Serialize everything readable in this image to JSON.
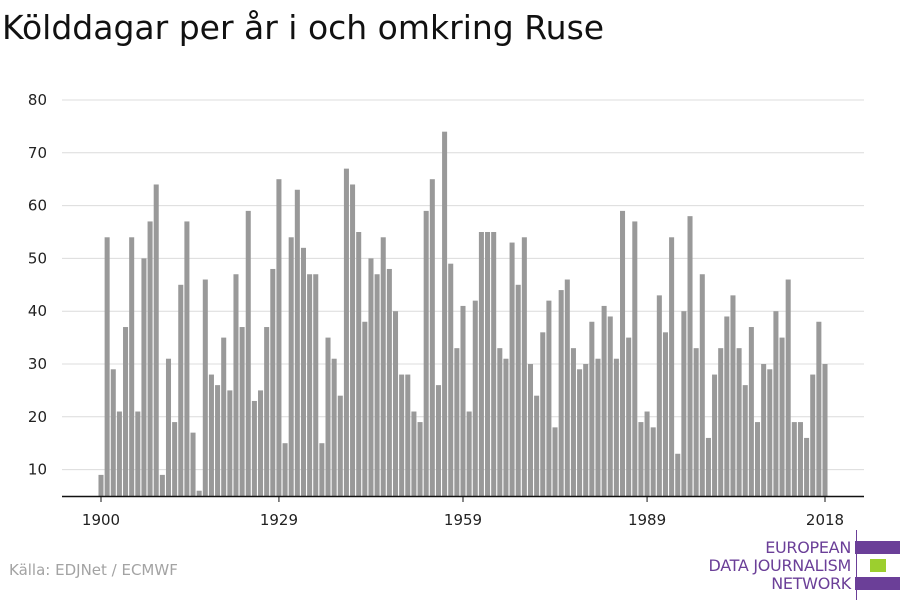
{
  "title": "Kölddagar per år i och omkring Ruse",
  "source": "Källa: EDJNet / ECMWF",
  "logo": {
    "lines": [
      "EUROPEAN",
      "DATA JOURNALISM",
      "NETWORK"
    ],
    "colors": {
      "purple": "#6b3f98",
      "green": "#9ccf2e"
    }
  },
  "colors": {
    "bar": "#999999",
    "grid": "#dcdcdc",
    "axis": "#111111",
    "tick_label": "#222222"
  },
  "chart_data": {
    "type": "bar",
    "title": "Kölddagar per år i och omkring Ruse",
    "xlabel": "",
    "ylabel": "",
    "x_start": 1900,
    "x_end": 2018,
    "x": [
      1900,
      1901,
      1902,
      1903,
      1904,
      1905,
      1906,
      1907,
      1908,
      1909,
      1910,
      1911,
      1912,
      1913,
      1914,
      1915,
      1916,
      1917,
      1918,
      1919,
      1920,
      1921,
      1922,
      1923,
      1924,
      1925,
      1926,
      1927,
      1928,
      1929,
      1930,
      1931,
      1932,
      1933,
      1934,
      1935,
      1936,
      1937,
      1938,
      1939,
      1940,
      1941,
      1942,
      1943,
      1944,
      1945,
      1946,
      1947,
      1948,
      1949,
      1950,
      1951,
      1952,
      1953,
      1954,
      1955,
      1956,
      1957,
      1958,
      1959,
      1960,
      1961,
      1962,
      1963,
      1964,
      1965,
      1966,
      1967,
      1968,
      1969,
      1970,
      1971,
      1972,
      1973,
      1974,
      1975,
      1976,
      1977,
      1978,
      1979,
      1980,
      1981,
      1982,
      1983,
      1984,
      1985,
      1986,
      1987,
      1988,
      1989,
      1990,
      1991,
      1992,
      1993,
      1994,
      1995,
      1996,
      1997,
      1998,
      1999,
      2000,
      2001,
      2002,
      2003,
      2004,
      2005,
      2006,
      2007,
      2008,
      2009,
      2010,
      2011,
      2012,
      2013,
      2014,
      2015,
      2016,
      2017,
      2018
    ],
    "values": [
      9,
      54,
      29,
      21,
      37,
      54,
      21,
      50,
      57,
      64,
      9,
      31,
      19,
      45,
      57,
      17,
      6,
      46,
      28,
      26,
      35,
      25,
      47,
      37,
      59,
      23,
      25,
      37,
      48,
      65,
      15,
      54,
      63,
      52,
      47,
      47,
      15,
      35,
      31,
      24,
      67,
      64,
      55,
      38,
      50,
      47,
      54,
      48,
      40,
      28,
      28,
      21,
      19,
      59,
      65,
      26,
      74,
      49,
      33,
      41,
      21,
      42,
      55,
      55,
      55,
      33,
      31,
      53,
      45,
      54,
      30,
      24,
      36,
      42,
      18,
      44,
      46,
      33,
      29,
      30,
      38,
      31,
      41,
      39,
      31,
      59,
      35,
      57,
      19,
      21,
      18,
      43,
      36,
      54,
      13,
      40,
      58,
      33,
      47,
      16,
      28,
      33,
      39,
      43,
      33,
      26,
      37,
      19,
      30,
      29,
      40,
      35,
      46,
      19,
      19,
      16,
      28,
      38,
      30
    ],
    "ylim": [
      5,
      80
    ],
    "y_ticks": [
      10,
      20,
      30,
      40,
      50,
      60,
      70,
      80
    ],
    "x_ticks": [
      1900,
      1929,
      1959,
      1989,
      2018
    ],
    "grid": true,
    "legend": "none"
  }
}
